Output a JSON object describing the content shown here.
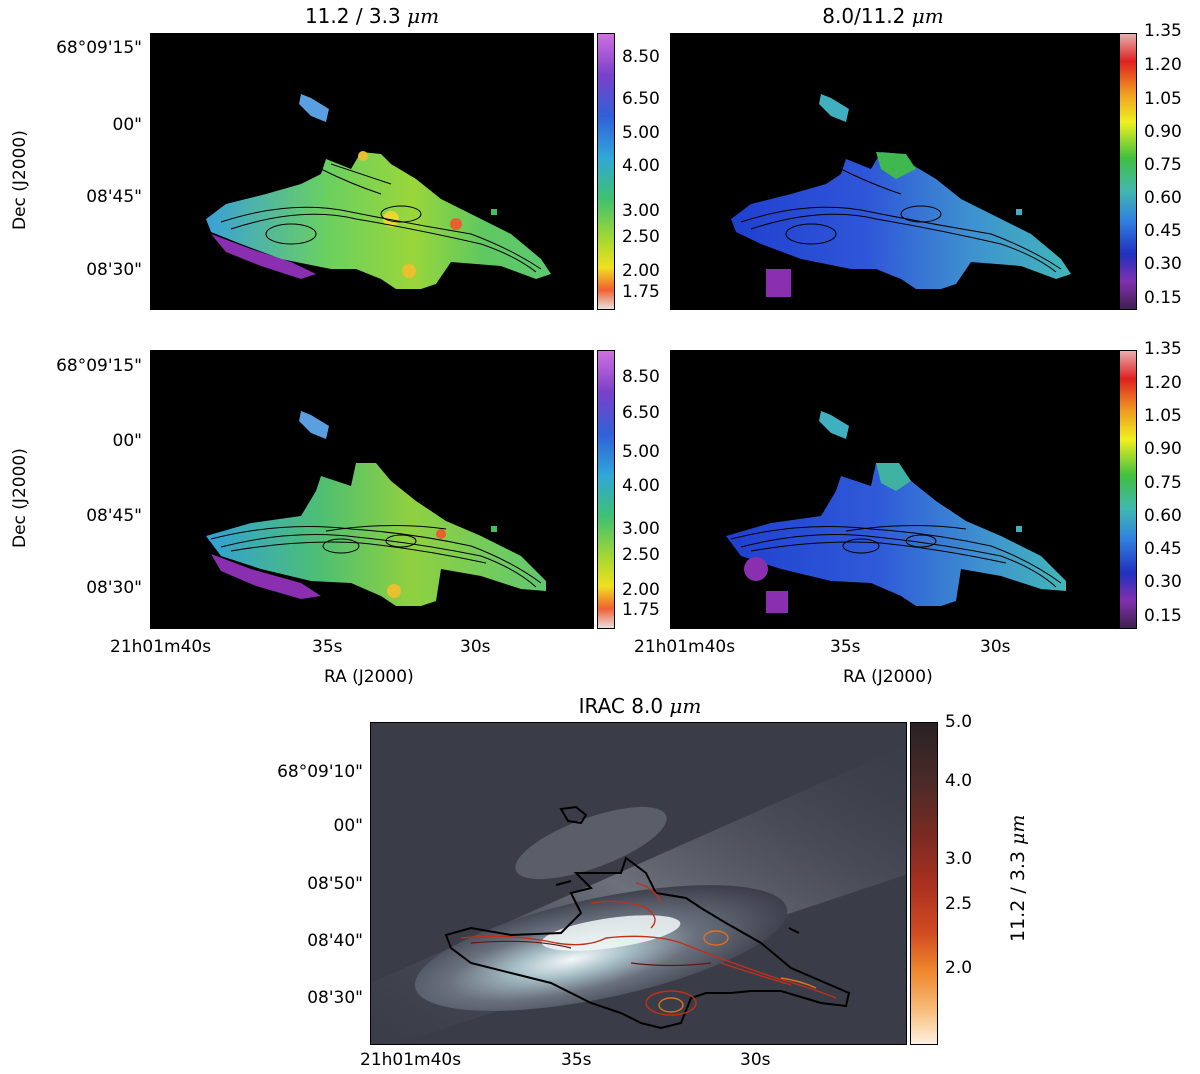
{
  "panels": {
    "tl": {
      "title_pre": "11.2 / 3.3 ",
      "title_unit": "μm"
    },
    "tr": {
      "title_pre": "8.0/11.2 ",
      "title_unit": "μm"
    }
  },
  "colorbars": {
    "ratio_11_3": {
      "ticks": [
        "8.50",
        "6.50",
        "5.00",
        "4.00",
        "3.00",
        "2.50",
        "2.00",
        "1.75"
      ]
    },
    "ratio_8_11": {
      "ticks": [
        "1.35",
        "1.20",
        "1.05",
        "0.90",
        "0.75",
        "0.60",
        "0.45",
        "0.30",
        "0.15"
      ]
    },
    "irac": {
      "ticks": [
        "5.0",
        "4.0",
        "3.0",
        "2.5",
        "2.0"
      ],
      "label_pre": "11.2 / 3.3 ",
      "label_unit": "μm"
    }
  },
  "axes": {
    "dec_ticks_top": [
      "68°09'15\"",
      "00\"",
      "08'45\"",
      "08'30\""
    ],
    "dec_ticks_bottom": [
      "68°09'10\"",
      "00\"",
      "08'50\"",
      "08'40\"",
      "08'30\""
    ],
    "ra_ticks": [
      "21h01m40s",
      "35s",
      "30s"
    ],
    "dec_label": "Dec (J2000)",
    "ra_label": "RA (J2000)"
  },
  "bottom": {
    "title_pre": "IRAC 8.0 ",
    "title_unit": "μm"
  },
  "colors": {
    "contour": "#000000",
    "irac_contour_inner": "#c0301a",
    "irac_contour_orange": "#e07020",
    "background": "#000000"
  }
}
